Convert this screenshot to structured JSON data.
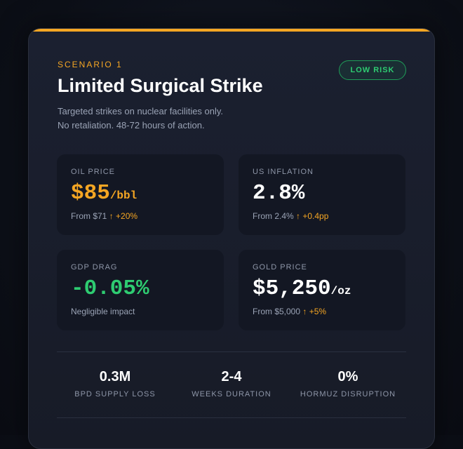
{
  "scenario": {
    "label": "SCENARIO 1",
    "risk_badge": "LOW RISK",
    "title": "Limited Surgical Strike",
    "description_line1": "Targeted strikes on nuclear facilities only.",
    "description_line2": "No retaliation. 48-72 hours of action."
  },
  "metrics": {
    "oil": {
      "label": "OIL PRICE",
      "value": "$85",
      "unit": "/bbl",
      "from": "From $71",
      "delta": "↑ +20%"
    },
    "inflation": {
      "label": "US INFLATION",
      "value": "2.8%",
      "unit": "",
      "from": "From 2.4%",
      "delta": "↑ +0.4pp"
    },
    "gdp": {
      "label": "GDP DRAG",
      "value": "-0.05%",
      "unit": "",
      "note": "Negligible impact"
    },
    "gold": {
      "label": "GOLD PRICE",
      "value": "$5,250",
      "unit": "/oz",
      "from": "From $5,000",
      "delta": "↑ +5%"
    }
  },
  "stats": [
    {
      "value": "0.3M",
      "label": "BPD SUPPLY LOSS"
    },
    {
      "value": "2-4",
      "label": "WEEKS DURATION"
    },
    {
      "value": "0%",
      "label": "HORMUZ DISRUPTION"
    }
  ],
  "colors": {
    "accent": "#f5a623",
    "positive": "#2ecc71",
    "card_bg": "#1b2030",
    "tile_bg": "#131723"
  }
}
